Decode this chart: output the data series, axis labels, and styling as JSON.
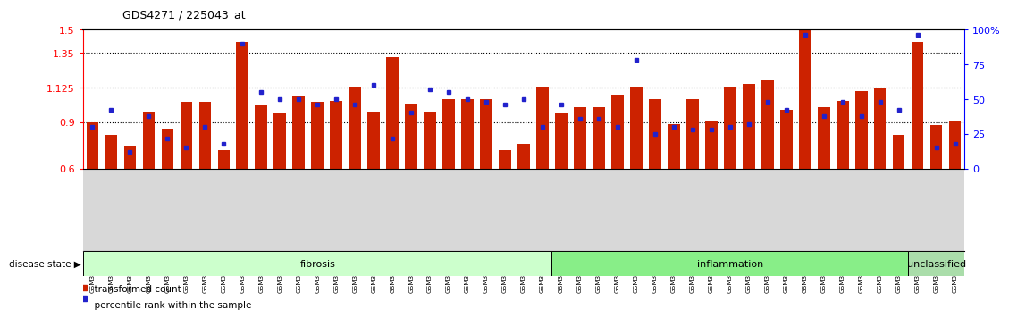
{
  "title": "GDS4271 / 225043_at",
  "samples": [
    "GSM380382",
    "GSM380383",
    "GSM380384",
    "GSM380385",
    "GSM380386",
    "GSM380387",
    "GSM380388",
    "GSM380389",
    "GSM380390",
    "GSM380391",
    "GSM380392",
    "GSM380393",
    "GSM380394",
    "GSM380395",
    "GSM380396",
    "GSM380397",
    "GSM380398",
    "GSM380399",
    "GSM380400",
    "GSM380401",
    "GSM380402",
    "GSM380403",
    "GSM380404",
    "GSM380405",
    "GSM380406",
    "GSM380407",
    "GSM380408",
    "GSM380409",
    "GSM380410",
    "GSM380411",
    "GSM380412",
    "GSM380413",
    "GSM380414",
    "GSM380415",
    "GSM380416",
    "GSM380417",
    "GSM380418",
    "GSM380419",
    "GSM380420",
    "GSM380421",
    "GSM380422",
    "GSM380423",
    "GSM380424",
    "GSM380425",
    "GSM380426",
    "GSM380427",
    "GSM380428"
  ],
  "red_values": [
    0.9,
    0.82,
    0.75,
    0.97,
    0.86,
    1.03,
    1.03,
    0.72,
    1.42,
    1.01,
    0.96,
    1.07,
    1.03,
    1.04,
    1.13,
    0.97,
    1.32,
    1.02,
    0.97,
    1.05,
    1.05,
    1.05,
    0.72,
    0.76,
    1.13,
    0.96,
    1.0,
    1.0,
    1.08,
    1.13,
    1.05,
    0.89,
    1.05,
    0.91,
    1.13,
    1.15,
    1.17,
    0.98,
    1.5,
    1.0,
    1.04,
    1.1,
    1.12,
    0.82,
    1.42,
    0.88,
    0.91
  ],
  "blue_pct": [
    30,
    42,
    12,
    38,
    22,
    15,
    30,
    18,
    90,
    55,
    50,
    50,
    46,
    50,
    46,
    60,
    22,
    40,
    57,
    55,
    50,
    48,
    46,
    50,
    30,
    46,
    36,
    36,
    30,
    78,
    25,
    30,
    28,
    28,
    30,
    32,
    48,
    42,
    96,
    38,
    48,
    38,
    48,
    42,
    96,
    15,
    18
  ],
  "disease_groups": [
    {
      "label": "fibrosis",
      "start": 0,
      "end": 25,
      "color": "#ccffcc"
    },
    {
      "label": "inflammation",
      "start": 25,
      "end": 44,
      "color": "#88ee88"
    },
    {
      "label": "unclassified",
      "start": 44,
      "end": 47,
      "color": "#aaddaa"
    }
  ],
  "ylim": [
    0.6,
    1.5
  ],
  "yticks_left": [
    0.6,
    0.9,
    1.125,
    1.35,
    1.5
  ],
  "yticks_right": [
    0,
    25,
    50,
    75,
    100
  ],
  "bar_color": "#cc2200",
  "dot_color": "#2222cc",
  "legend_red_label": "transformed count",
  "legend_blue_label": "percentile rank within the sample"
}
